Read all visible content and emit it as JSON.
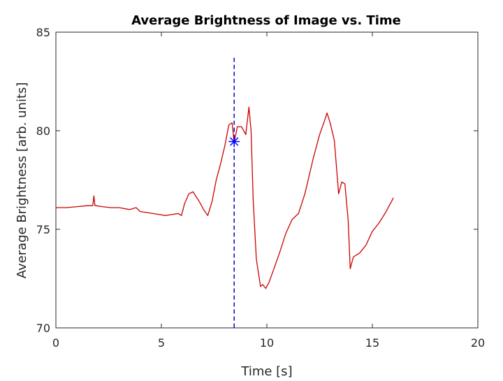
{
  "chart_data": {
    "type": "line",
    "title": "Average Brightness of Image vs. Time",
    "xlabel": "Time [s]",
    "ylabel": "Average Brightness [arb. units]",
    "xlim": [
      0,
      20
    ],
    "ylim": [
      70,
      85
    ],
    "xticks": [
      0,
      5,
      10,
      15,
      20
    ],
    "xtick_labels": [
      "0",
      "5",
      "10",
      "15",
      "20"
    ],
    "yticks": [
      70,
      75,
      80,
      85
    ],
    "ytick_labels": [
      "70",
      "75",
      "80",
      "85"
    ],
    "grid": false,
    "series": [
      {
        "name": "Average Brightness",
        "color": "#cc0000",
        "x": [
          0,
          0.5,
          1.0,
          1.5,
          1.75,
          1.8,
          1.85,
          1.9,
          2.2,
          2.6,
          3.0,
          3.5,
          3.8,
          4.0,
          4.3,
          4.6,
          4.9,
          5.2,
          5.5,
          5.8,
          5.95,
          6.1,
          6.3,
          6.5,
          6.8,
          7.0,
          7.2,
          7.4,
          7.6,
          7.8,
          8.0,
          8.2,
          8.35,
          8.45,
          8.6,
          8.8,
          9.0,
          9.15,
          9.25,
          9.35,
          9.5,
          9.7,
          9.8,
          9.95,
          10.1,
          10.3,
          10.6,
          10.9,
          11.2,
          11.5,
          11.8,
          12.0,
          12.2,
          12.5,
          12.7,
          12.85,
          13.0,
          13.2,
          13.4,
          13.55,
          13.7,
          13.85,
          13.95,
          14.1,
          14.4,
          14.7,
          15.0,
          15.3,
          15.6,
          15.85,
          16.0
        ],
        "y": [
          76.1,
          76.1,
          76.15,
          76.2,
          76.2,
          76.7,
          76.2,
          76.2,
          76.15,
          76.1,
          76.1,
          76.0,
          76.1,
          75.9,
          75.85,
          75.8,
          75.75,
          75.7,
          75.75,
          75.8,
          75.7,
          76.3,
          76.8,
          76.9,
          76.4,
          76.0,
          75.7,
          76.4,
          77.5,
          78.3,
          79.2,
          80.3,
          80.4,
          79.4,
          80.2,
          80.2,
          79.8,
          81.2,
          80.0,
          76.5,
          73.5,
          72.1,
          72.2,
          72.0,
          72.3,
          72.9,
          73.8,
          74.8,
          75.5,
          75.8,
          76.8,
          77.7,
          78.6,
          79.8,
          80.4,
          80.9,
          80.4,
          79.5,
          76.8,
          77.4,
          77.3,
          75.5,
          73.0,
          73.6,
          73.8,
          74.2,
          74.9,
          75.3,
          75.8,
          76.3,
          76.6
        ]
      }
    ],
    "vline": {
      "x": 8.45,
      "ymin": 70,
      "ymax": 83.7,
      "color": "#0000cc",
      "style": "dashed"
    },
    "marker": {
      "x": 8.45,
      "y": 79.45,
      "symbol": "asterisk",
      "color": "#0000ff"
    }
  }
}
